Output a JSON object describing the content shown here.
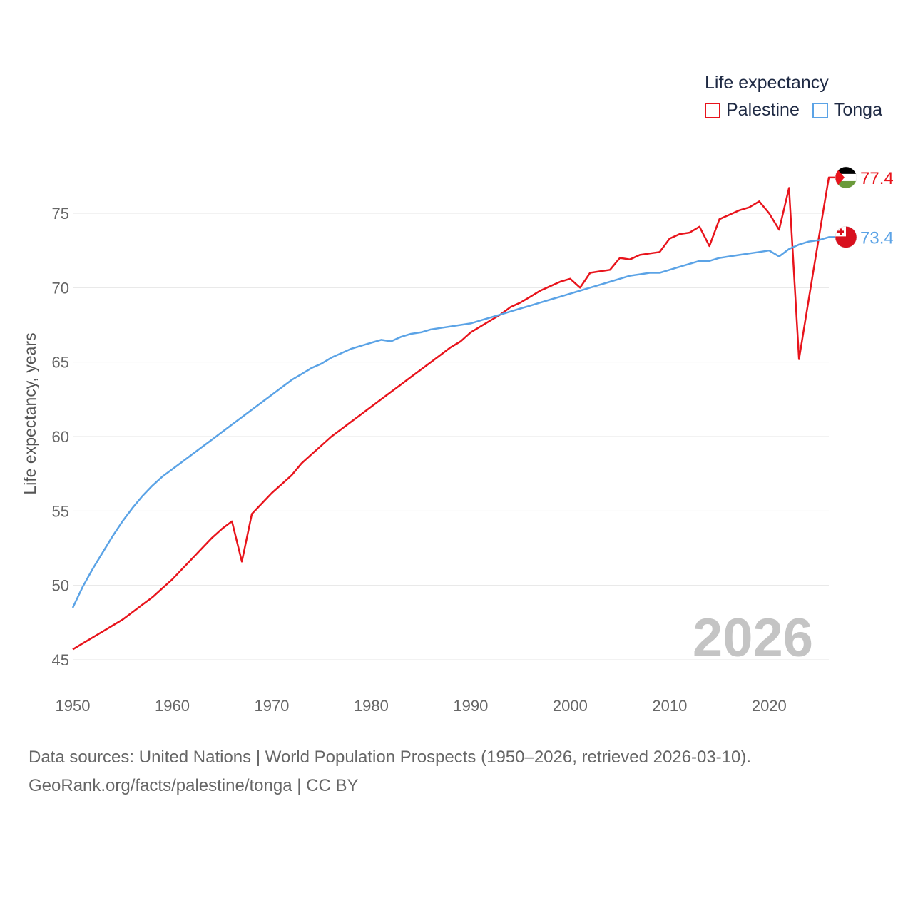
{
  "chart_data": {
    "type": "line",
    "title": "Life expectancy",
    "xlabel": "",
    "ylabel": "Life expectancy, years",
    "xlim": [
      1950,
      2026
    ],
    "ylim": [
      45,
      78
    ],
    "x_ticks": [
      1950,
      1960,
      1970,
      1980,
      1990,
      2000,
      2010,
      2020
    ],
    "y_ticks": [
      45,
      50,
      55,
      60,
      65,
      70,
      75
    ],
    "grid": "horizontal",
    "legend_position": "top-right",
    "year_watermark": "2026",
    "x": [
      1950,
      1951,
      1952,
      1953,
      1954,
      1955,
      1956,
      1957,
      1958,
      1959,
      1960,
      1961,
      1962,
      1963,
      1964,
      1965,
      1966,
      1967,
      1968,
      1969,
      1970,
      1971,
      1972,
      1973,
      1974,
      1975,
      1976,
      1977,
      1978,
      1979,
      1980,
      1981,
      1982,
      1983,
      1984,
      1985,
      1986,
      1987,
      1988,
      1989,
      1990,
      1991,
      1992,
      1993,
      1994,
      1995,
      1996,
      1997,
      1998,
      1999,
      2000,
      2001,
      2002,
      2003,
      2004,
      2005,
      2006,
      2007,
      2008,
      2009,
      2010,
      2011,
      2012,
      2013,
      2014,
      2015,
      2016,
      2017,
      2018,
      2019,
      2020,
      2021,
      2022,
      2023,
      2024,
      2025,
      2026
    ],
    "series": [
      {
        "name": "Palestine",
        "color": "#e8141c",
        "end_label": "77.4",
        "flag": "palestine-flag",
        "values": [
          45.7,
          46.1,
          46.5,
          46.9,
          47.3,
          47.7,
          48.2,
          48.7,
          49.2,
          49.8,
          50.4,
          51.1,
          51.8,
          52.5,
          53.2,
          53.8,
          54.3,
          51.6,
          54.8,
          55.5,
          56.2,
          56.8,
          57.4,
          58.2,
          58.8,
          59.4,
          60.0,
          60.5,
          61.0,
          61.5,
          62.0,
          62.5,
          63.0,
          63.5,
          64.0,
          64.5,
          65.0,
          65.5,
          66.0,
          66.4,
          67.0,
          67.4,
          67.8,
          68.2,
          68.7,
          69.0,
          69.4,
          69.8,
          70.1,
          70.4,
          70.6,
          70.0,
          71.0,
          71.1,
          71.2,
          72.0,
          71.9,
          72.2,
          72.3,
          72.4,
          73.3,
          73.6,
          73.7,
          74.1,
          72.8,
          74.6,
          74.9,
          75.2,
          75.4,
          75.8,
          75.0,
          73.9,
          76.7,
          65.2,
          69.3,
          73.4,
          77.4
        ]
      },
      {
        "name": "Tonga",
        "color": "#5ba3e6",
        "end_label": "73.4",
        "flag": "tonga-flag",
        "values": [
          48.5,
          49.9,
          51.1,
          52.2,
          53.3,
          54.3,
          55.2,
          56.0,
          56.7,
          57.3,
          57.8,
          58.3,
          58.8,
          59.3,
          59.8,
          60.3,
          60.8,
          61.3,
          61.8,
          62.3,
          62.8,
          63.3,
          63.8,
          64.2,
          64.6,
          64.9,
          65.3,
          65.6,
          65.9,
          66.1,
          66.3,
          66.5,
          66.4,
          66.7,
          66.9,
          67.0,
          67.2,
          67.3,
          67.4,
          67.5,
          67.6,
          67.8,
          68.0,
          68.2,
          68.4,
          68.6,
          68.8,
          69.0,
          69.2,
          69.4,
          69.6,
          69.8,
          70.0,
          70.2,
          70.4,
          70.6,
          70.8,
          70.9,
          71.0,
          71.0,
          71.2,
          71.4,
          71.6,
          71.8,
          71.8,
          72.0,
          72.1,
          72.2,
          72.3,
          72.4,
          72.5,
          72.1,
          72.6,
          72.9,
          73.1,
          73.2,
          73.4
        ]
      }
    ]
  },
  "footer": {
    "line1": "Data sources: United Nations | World Population Prospects (1950–2026, retrieved 2026-03-10).",
    "line2": "GeoRank.org/facts/palestine/tonga | CC BY"
  }
}
